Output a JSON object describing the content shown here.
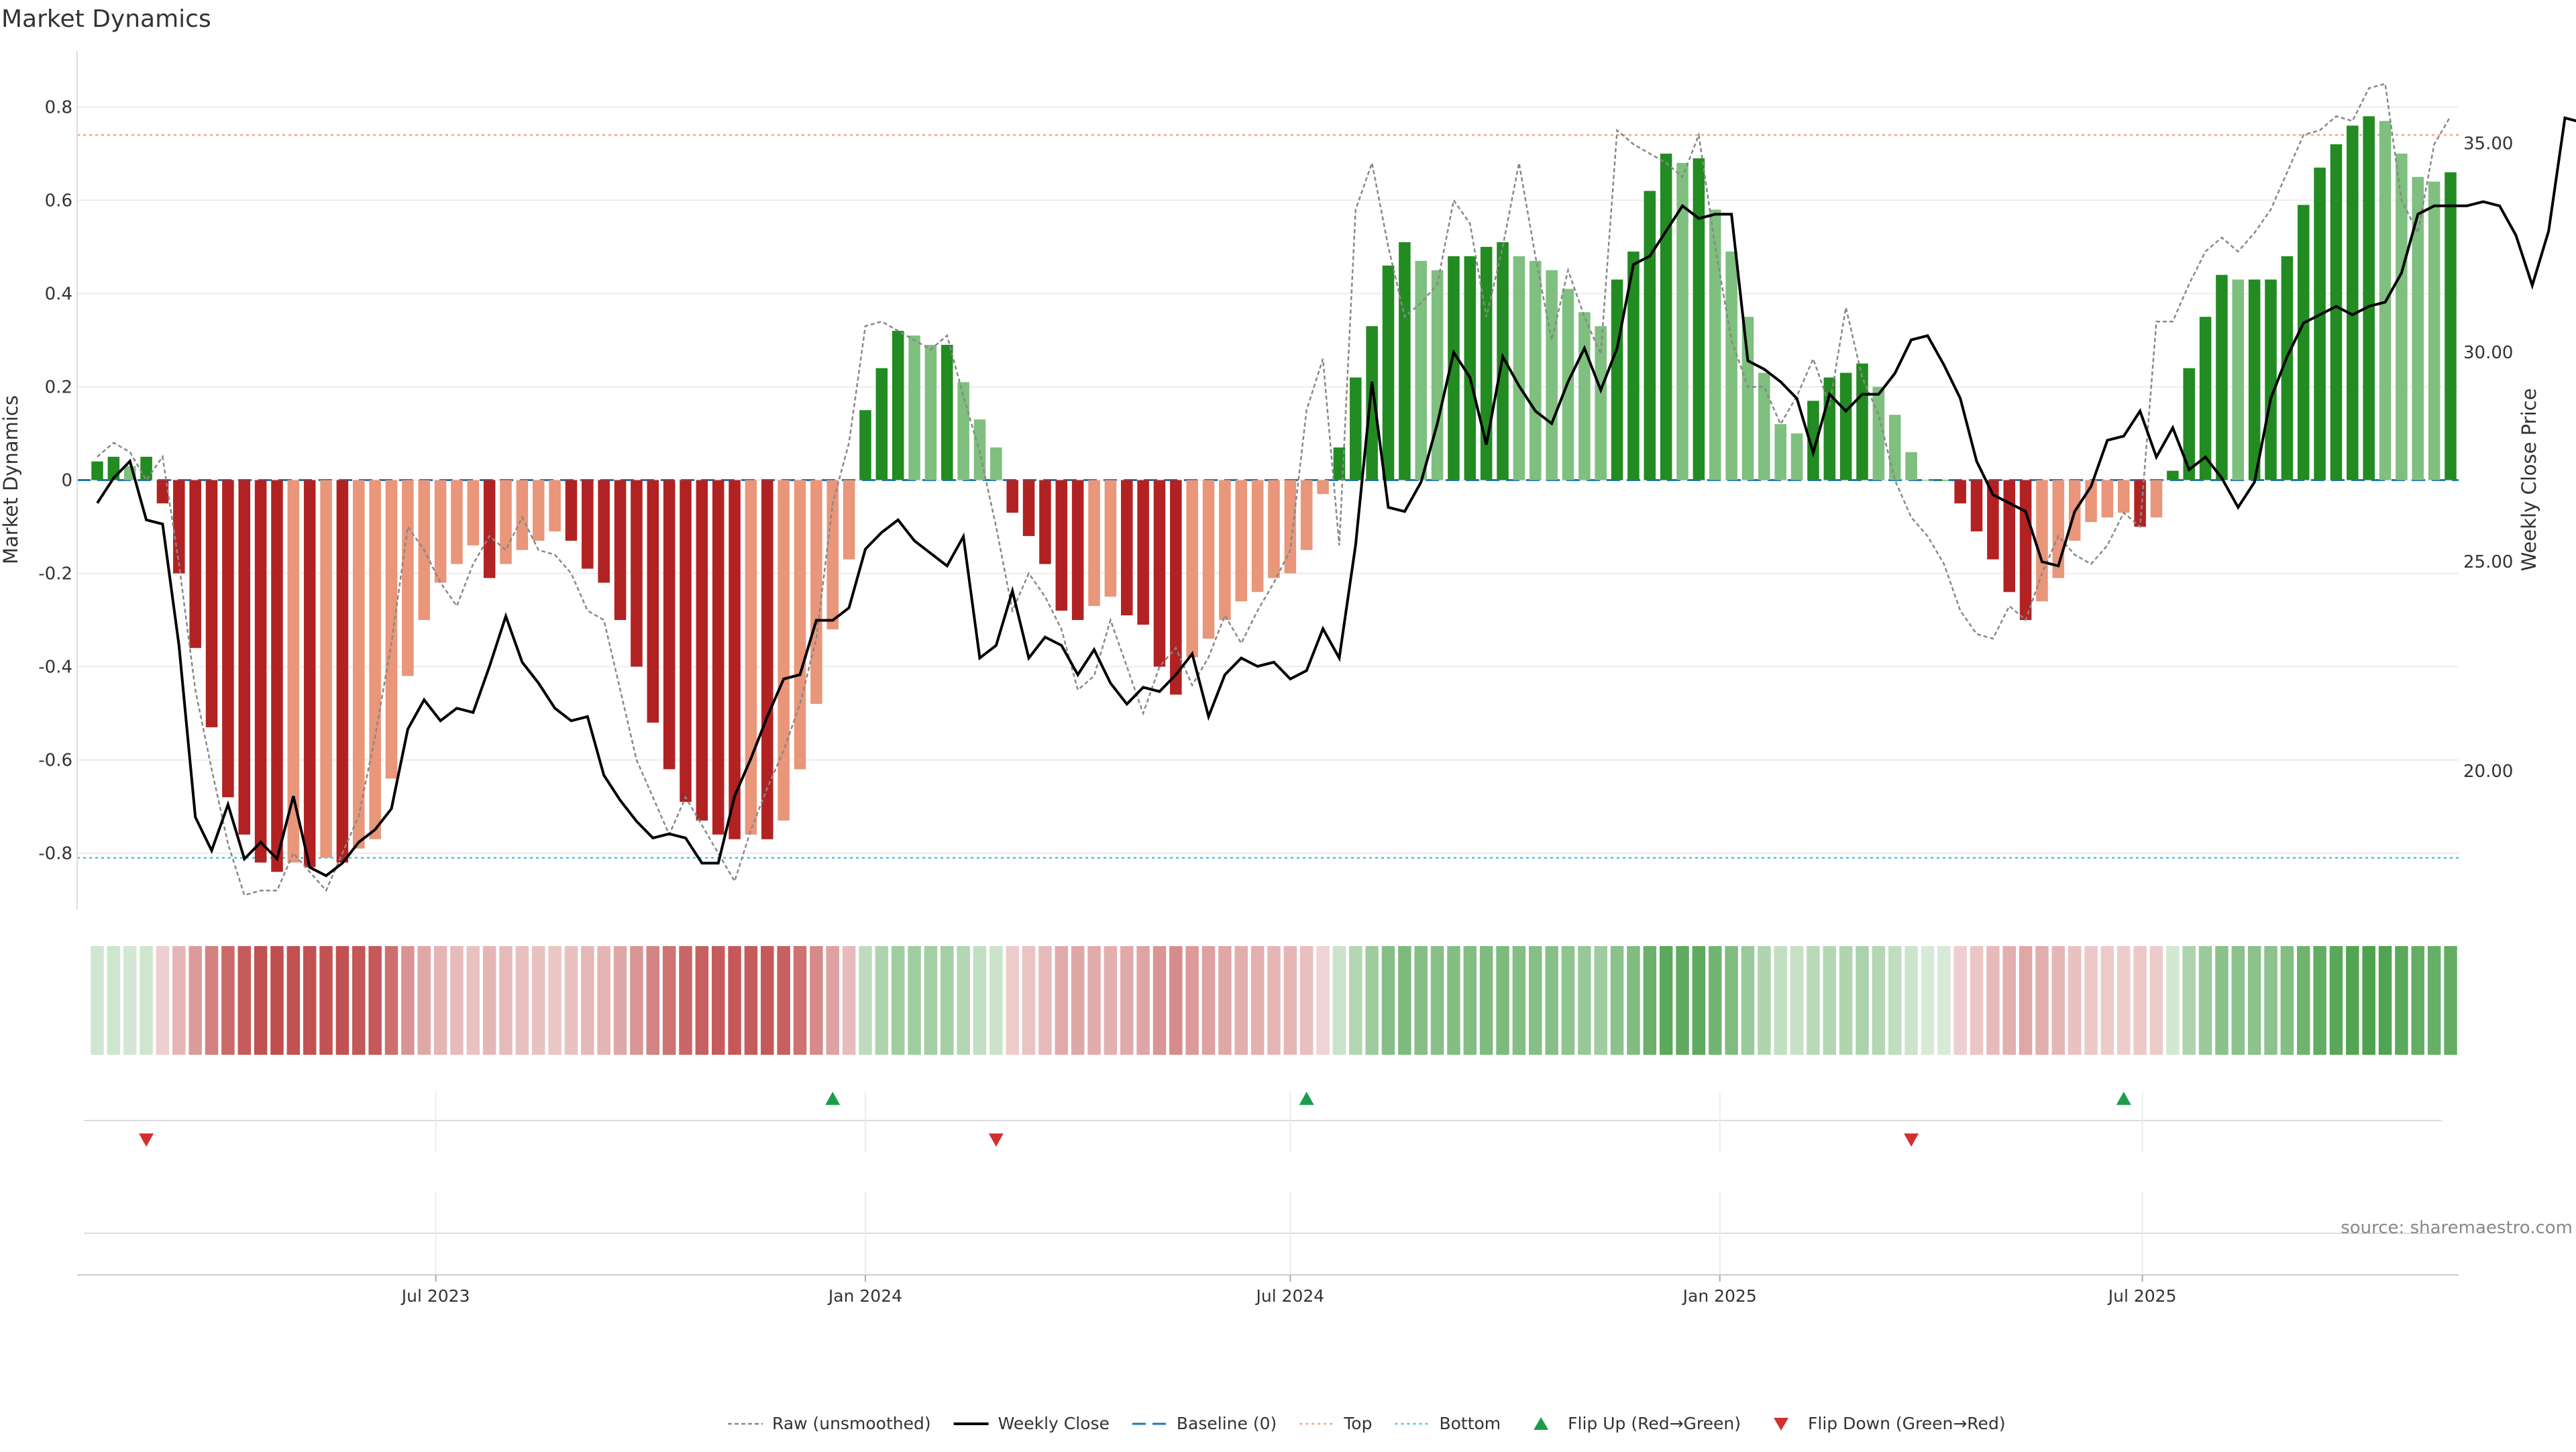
{
  "title": "Market Dynamics",
  "source_text": "source: sharemaestro.com",
  "colors": {
    "strong_green": "#228B22",
    "light_green": "#7FBF7F",
    "strong_red": "#B22222",
    "light_red": "#E9967A",
    "price_line": "#000000",
    "raw_line": "#888888",
    "baseline": "#1F77B4",
    "top_line": "#F4A582",
    "bottom_line": "#4FC3D8",
    "flip_up": "#1A9E4A",
    "flip_down": "#D32F2F"
  },
  "legend": [
    {
      "key": "raw",
      "label": "Raw (unsmoothed)"
    },
    {
      "key": "close",
      "label": "Weekly Close"
    },
    {
      "key": "baseline",
      "label": "Baseline (0)"
    },
    {
      "key": "top",
      "label": "Top"
    },
    {
      "key": "bottom",
      "label": "Bottom"
    },
    {
      "key": "flip_up",
      "label": "Flip Up (Red→Green)"
    },
    {
      "key": "flip_down",
      "label": "Flip Down (Green→Red)"
    }
  ],
  "chart_data": {
    "type": "bar",
    "title": "Market Dynamics",
    "ylabel": "Market Dynamics",
    "y2label": "Weekly Close Price",
    "ylim": [
      -0.92,
      0.92
    ],
    "y2lim": [
      16.7,
      37.2
    ],
    "yticks": [
      "0.8",
      "0.6",
      "0.4",
      "0.2",
      "0",
      "-0.2",
      "-0.4",
      "-0.6",
      "-0.8"
    ],
    "y2ticks": [
      "35.00",
      "30.00",
      "25.00",
      "20.00"
    ],
    "x_start_week": "2023-02-06",
    "x_tick_labels": [
      {
        "date": "2023-07-01",
        "label": "Jul 2023"
      },
      {
        "date": "2024-01-01",
        "label": "Jan 2024"
      },
      {
        "date": "2024-07-01",
        "label": "Jul 2024"
      },
      {
        "date": "2025-01-01",
        "label": "Jan 2025"
      },
      {
        "date": "2025-07-01",
        "label": "Jul 2025"
      }
    ],
    "top_level": 0.74,
    "bottom_level": -0.81,
    "baseline": 0,
    "dynamics": [
      0.04,
      0.05,
      0.03,
      0.05,
      -0.05,
      -0.2,
      -0.36,
      -0.53,
      -0.68,
      -0.76,
      -0.82,
      -0.84,
      -0.82,
      -0.83,
      -0.81,
      -0.82,
      -0.79,
      -0.77,
      -0.64,
      -0.42,
      -0.3,
      -0.22,
      -0.18,
      -0.14,
      -0.21,
      -0.18,
      -0.15,
      -0.13,
      -0.11,
      -0.13,
      -0.19,
      -0.22,
      -0.3,
      -0.4,
      -0.52,
      -0.62,
      -0.69,
      -0.73,
      -0.76,
      -0.77,
      -0.76,
      -0.77,
      -0.73,
      -0.62,
      -0.48,
      -0.32,
      -0.17,
      0.15,
      0.24,
      0.32,
      0.31,
      0.29,
      0.29,
      0.21,
      0.13,
      0.07,
      -0.07,
      -0.12,
      -0.18,
      -0.28,
      -0.3,
      -0.27,
      -0.25,
      -0.29,
      -0.31,
      -0.4,
      -0.46,
      -0.38,
      -0.34,
      -0.3,
      -0.26,
      -0.24,
      -0.21,
      -0.2,
      -0.15,
      -0.03,
      0.07,
      0.22,
      0.33,
      0.46,
      0.51,
      0.47,
      0.45,
      0.48,
      0.48,
      0.5,
      0.51,
      0.48,
      0.47,
      0.45,
      0.41,
      0.36,
      0.33,
      0.43,
      0.49,
      0.62,
      0.7,
      0.68,
      0.69,
      0.58,
      0.49,
      0.35,
      0.23,
      0.12,
      0.1,
      0.17,
      0.22,
      0.23,
      0.25,
      0.2,
      0.14,
      0.06,
      0.0,
      0.0,
      -0.05,
      -0.11,
      -0.17,
      -0.24,
      -0.3,
      -0.26,
      -0.21,
      -0.13,
      -0.09,
      -0.08,
      -0.07,
      -0.1,
      -0.08,
      0.02,
      0.24,
      0.35,
      0.44,
      0.43,
      0.43,
      0.43,
      0.48,
      0.59,
      0.67,
      0.72,
      0.76,
      0.78,
      0.77,
      0.7,
      0.65,
      0.64,
      0.66
    ],
    "raw": [
      0.05,
      0.08,
      0.06,
      0.0,
      0.05,
      -0.18,
      -0.45,
      -0.62,
      -0.78,
      -0.89,
      -0.88,
      -0.88,
      -0.8,
      -0.84,
      -0.88,
      -0.8,
      -0.72,
      -0.55,
      -0.35,
      -0.1,
      -0.15,
      -0.22,
      -0.27,
      -0.18,
      -0.12,
      -0.15,
      -0.08,
      -0.15,
      -0.16,
      -0.2,
      -0.28,
      -0.3,
      -0.45,
      -0.6,
      -0.68,
      -0.76,
      -0.68,
      -0.74,
      -0.8,
      -0.86,
      -0.75,
      -0.66,
      -0.58,
      -0.48,
      -0.34,
      -0.05,
      0.08,
      0.33,
      0.34,
      0.32,
      0.3,
      0.28,
      0.31,
      0.18,
      0.06,
      -0.1,
      -0.28,
      -0.2,
      -0.25,
      -0.32,
      -0.45,
      -0.42,
      -0.3,
      -0.4,
      -0.5,
      -0.4,
      -0.36,
      -0.44,
      -0.38,
      -0.29,
      -0.35,
      -0.28,
      -0.22,
      -0.15,
      0.15,
      0.26,
      -0.14,
      0.58,
      0.68,
      0.5,
      0.35,
      0.38,
      0.42,
      0.6,
      0.55,
      0.35,
      0.5,
      0.68,
      0.48,
      0.3,
      0.45,
      0.35,
      0.27,
      0.75,
      0.72,
      0.7,
      0.68,
      0.65,
      0.74,
      0.5,
      0.3,
      0.2,
      0.2,
      0.12,
      0.18,
      0.26,
      0.16,
      0.37,
      0.22,
      0.14,
      0.0,
      -0.08,
      -0.12,
      -0.18,
      -0.28,
      -0.33,
      -0.34,
      -0.27,
      -0.3,
      -0.2,
      -0.12,
      -0.16,
      -0.18,
      -0.14,
      -0.07,
      -0.1,
      0.34,
      0.34,
      0.42,
      0.49,
      0.52,
      0.49,
      0.53,
      0.58,
      0.66,
      0.74,
      0.75,
      0.78,
      0.77,
      0.84,
      0.85,
      0.6,
      0.53,
      0.72,
      0.78
    ],
    "close": [
      26.4,
      27.0,
      27.4,
      26.0,
      25.9,
      23.0,
      18.9,
      18.1,
      19.2,
      17.9,
      18.3,
      17.9,
      19.4,
      17.7,
      17.5,
      17.8,
      18.3,
      18.6,
      19.1,
      21.0,
      21.7,
      21.2,
      21.5,
      21.4,
      22.5,
      23.7,
      22.6,
      22.1,
      21.5,
      21.2,
      21.3,
      19.9,
      19.3,
      18.8,
      18.4,
      18.5,
      18.4,
      17.8,
      17.8,
      19.4,
      20.3,
      21.3,
      22.2,
      22.3,
      23.6,
      23.6,
      23.9,
      25.3,
      25.7,
      26.0,
      25.5,
      25.2,
      24.9,
      25.6,
      22.7,
      23.0,
      24.3,
      22.7,
      23.2,
      23.0,
      22.3,
      22.9,
      22.1,
      21.6,
      22.0,
      21.9,
      22.3,
      22.8,
      21.3,
      22.3,
      22.7,
      22.5,
      22.6,
      22.2,
      22.4,
      23.4,
      22.7,
      25.4,
      29.3,
      26.3,
      26.2,
      26.9,
      28.3,
      30.0,
      29.4,
      27.8,
      29.9,
      29.2,
      28.6,
      28.3,
      29.3,
      30.1,
      29.1,
      30.1,
      32.1,
      32.3,
      32.9,
      33.5,
      33.2,
      33.3,
      33.3,
      29.8,
      29.6,
      29.3,
      28.9,
      27.6,
      29.0,
      28.6,
      29.0,
      29.0,
      29.5,
      30.3,
      30.4,
      29.7,
      28.9,
      27.4,
      26.6,
      26.4,
      26.2,
      25.0,
      24.9,
      26.2,
      26.8,
      27.9,
      28.0,
      28.6,
      27.5,
      28.2,
      27.2,
      27.5,
      27.0,
      26.3,
      26.9,
      28.9,
      29.9,
      30.7,
      30.9,
      31.1,
      30.9,
      31.1,
      31.2,
      31.9,
      33.3,
      33.5,
      33.5,
      33.5,
      33.6,
      33.5,
      32.8,
      31.6,
      32.9,
      35.6,
      35.5
    ],
    "flips_up": [
      "2023-12-18",
      "2024-07-08",
      "2025-06-23"
    ],
    "flips_down": [
      "2023-02-27",
      "2024-02-26",
      "2025-03-24"
    ]
  }
}
